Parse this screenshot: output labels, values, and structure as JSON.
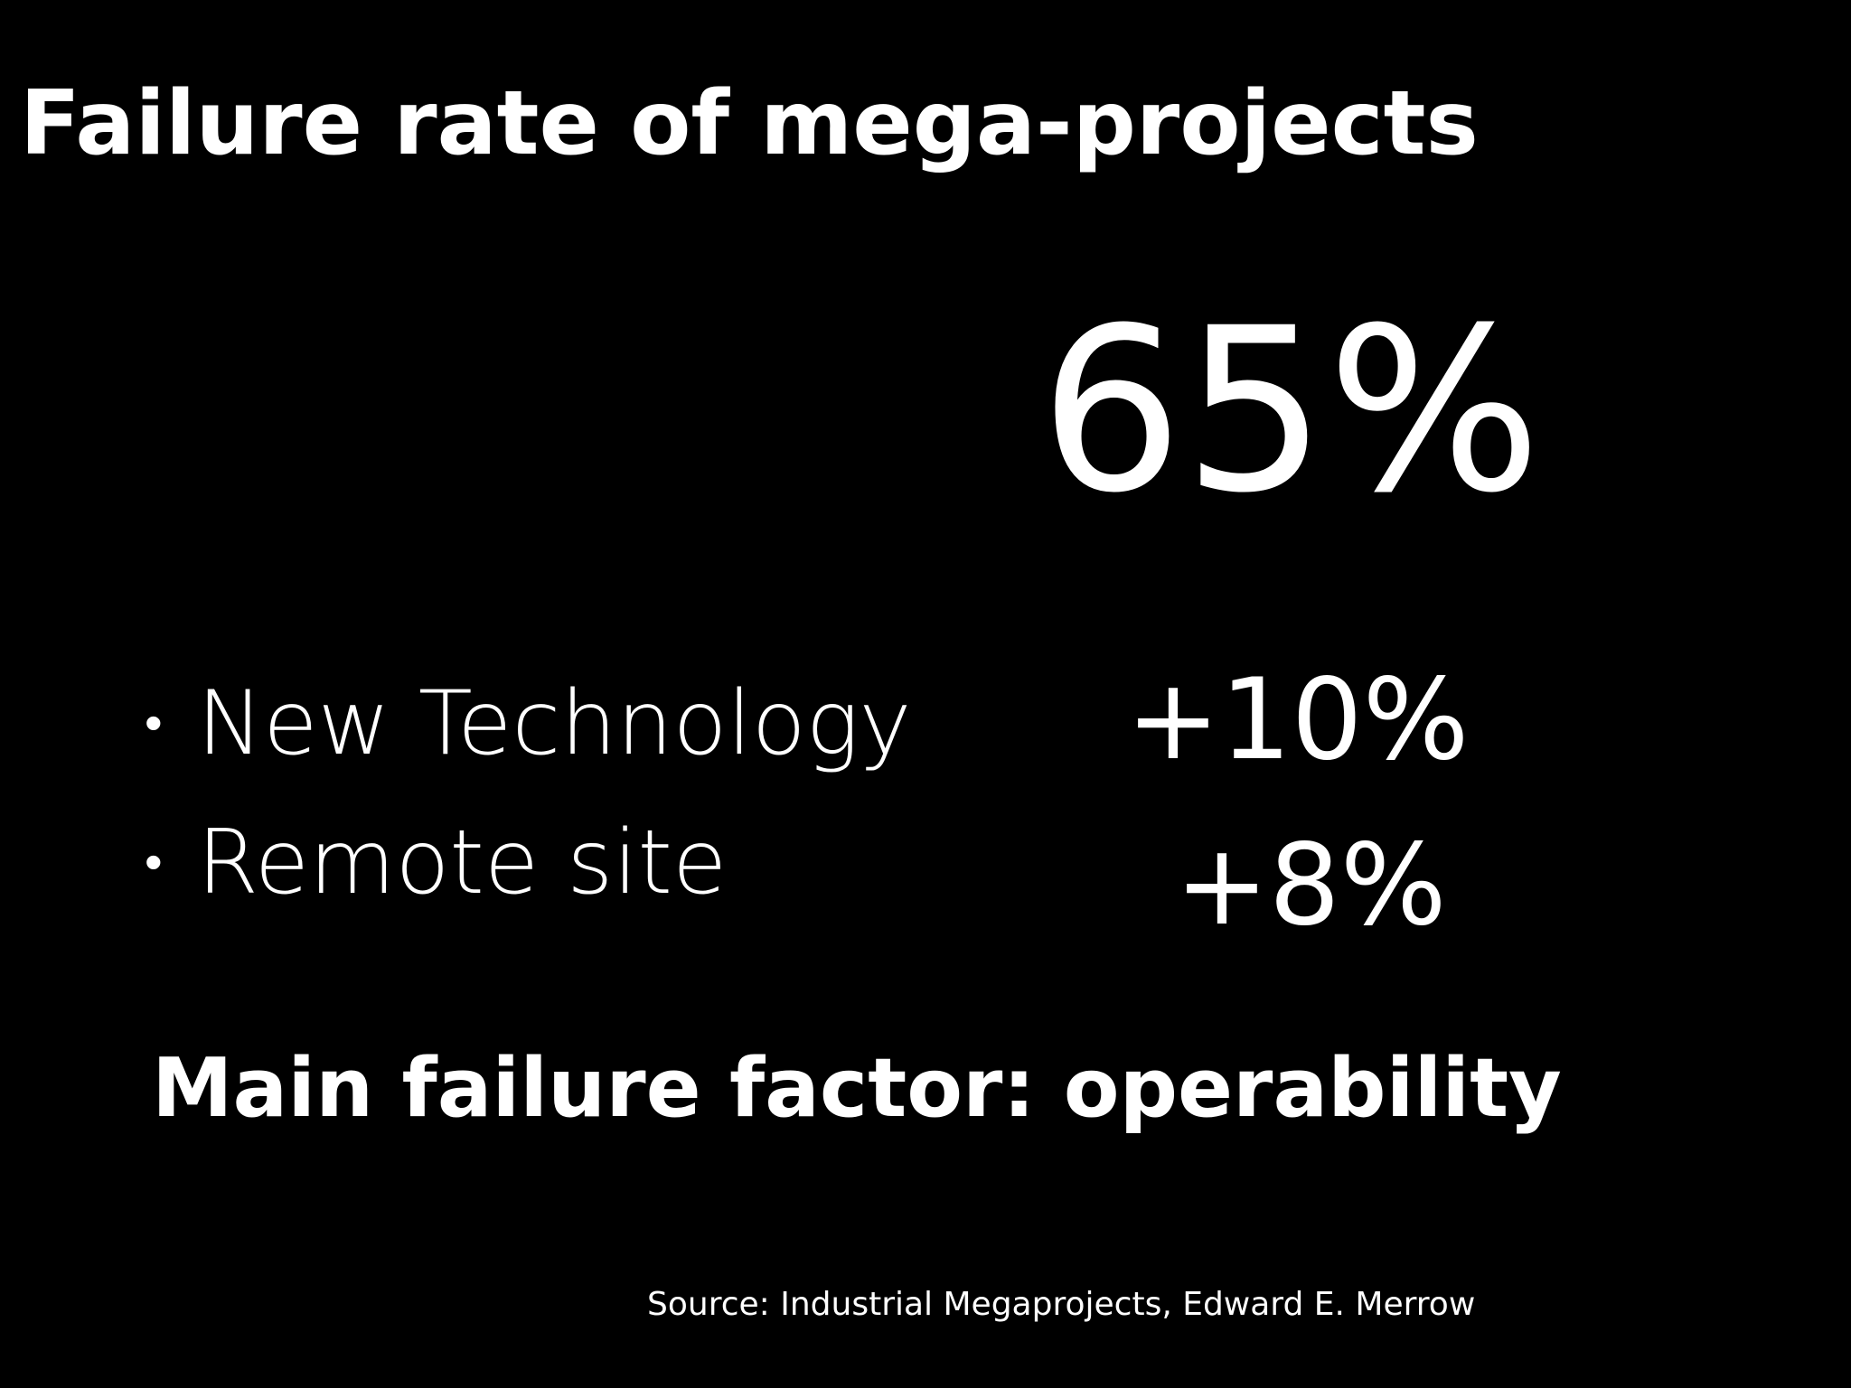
{
  "slide": {
    "title": "Failure rate of mega-projects",
    "headline_stat": "65%",
    "factors": [
      {
        "bullet": "•",
        "label": "New Technology",
        "value": "+10%"
      },
      {
        "bullet": "•",
        "label": "Remote site",
        "value": "+8%"
      }
    ],
    "main_factor": "Main failure factor: operability",
    "source": "Source: Industrial Megaprojects, Edward E. Merrow"
  },
  "colors": {
    "background": "#000000",
    "text": "#ffffff"
  }
}
